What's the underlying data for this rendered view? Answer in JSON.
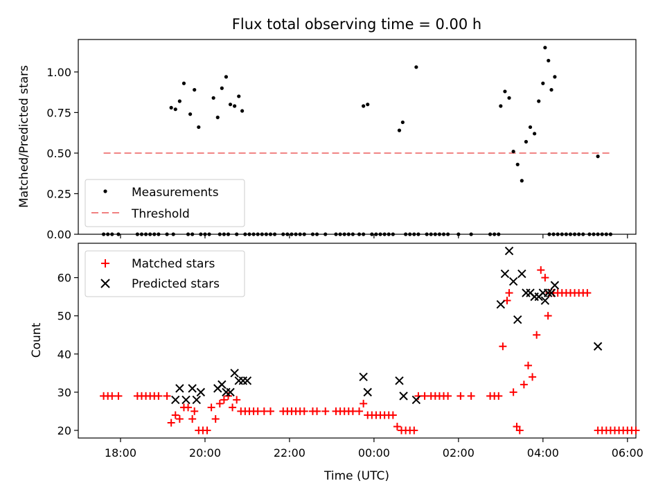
{
  "title": "Flux total observing time = 0.00 h",
  "colors": {
    "measurement": "#000000",
    "threshold": "#f08080",
    "matched": "#ff0000",
    "predicted": "#000000"
  },
  "chart_data": [
    {
      "type": "scatter",
      "title": "Flux total observing time = 0.00 h",
      "xlabel": "",
      "ylabel": "Matched/Predicted stars",
      "xlim_hours": [
        17.0,
        30.2
      ],
      "ylim": [
        0,
        1.2
      ],
      "yticks": [
        0.0,
        0.25,
        0.5,
        0.75,
        1.0
      ],
      "ytick_labels": [
        "0.00",
        "0.25",
        "0.50",
        "0.75",
        "1.00"
      ],
      "grid": false,
      "legend_position": "lower-left",
      "legend": [
        {
          "label": "Measurements",
          "marker": "dot"
        },
        {
          "label": "Threshold",
          "marker": "dashed-line"
        }
      ],
      "threshold": {
        "value": 0.5,
        "x_range_hours": [
          17.6,
          29.6
        ]
      },
      "series": [
        {
          "name": "Measurements",
          "points": [
            [
              19.2,
              0.78
            ],
            [
              19.3,
              0.77
            ],
            [
              19.4,
              0.82
            ],
            [
              19.5,
              0.93
            ],
            [
              19.65,
              0.74
            ],
            [
              19.75,
              0.89
            ],
            [
              19.85,
              0.66
            ],
            [
              20.2,
              0.84
            ],
            [
              20.3,
              0.72
            ],
            [
              20.4,
              0.9
            ],
            [
              20.5,
              0.97
            ],
            [
              20.6,
              0.8
            ],
            [
              20.7,
              0.79
            ],
            [
              20.8,
              0.85
            ],
            [
              20.88,
              0.76
            ],
            [
              23.75,
              0.79
            ],
            [
              23.85,
              0.8
            ],
            [
              24.6,
              0.64
            ],
            [
              24.68,
              0.69
            ],
            [
              25.0,
              1.03
            ],
            [
              27.0,
              0.79
            ],
            [
              27.1,
              0.88
            ],
            [
              27.2,
              0.84
            ],
            [
              27.3,
              0.51
            ],
            [
              27.4,
              0.43
            ],
            [
              27.5,
              0.33
            ],
            [
              27.6,
              0.57
            ],
            [
              27.7,
              0.66
            ],
            [
              27.8,
              0.62
            ],
            [
              27.9,
              0.82
            ],
            [
              28.0,
              0.93
            ],
            [
              28.05,
              1.15
            ],
            [
              28.13,
              1.07
            ],
            [
              28.2,
              0.89
            ],
            [
              28.28,
              0.97
            ],
            [
              29.3,
              0.48
            ],
            [
              17.6,
              0
            ],
            [
              17.7,
              0
            ],
            [
              17.8,
              0
            ],
            [
              17.95,
              0
            ],
            [
              18.4,
              0
            ],
            [
              18.5,
              0
            ],
            [
              18.6,
              0
            ],
            [
              18.7,
              0
            ],
            [
              18.8,
              0
            ],
            [
              18.9,
              0
            ],
            [
              19.1,
              0
            ],
            [
              19.25,
              0
            ],
            [
              19.6,
              0
            ],
            [
              19.7,
              0
            ],
            [
              19.9,
              0
            ],
            [
              20.0,
              0
            ],
            [
              20.1,
              0
            ],
            [
              20.35,
              0
            ],
            [
              20.45,
              0
            ],
            [
              20.55,
              0
            ],
            [
              20.75,
              0
            ],
            [
              20.95,
              0
            ],
            [
              21.05,
              0
            ],
            [
              21.15,
              0
            ],
            [
              21.25,
              0
            ],
            [
              21.35,
              0
            ],
            [
              21.45,
              0
            ],
            [
              21.55,
              0
            ],
            [
              21.65,
              0
            ],
            [
              21.85,
              0
            ],
            [
              21.95,
              0
            ],
            [
              22.05,
              0
            ],
            [
              22.15,
              0
            ],
            [
              22.25,
              0
            ],
            [
              22.35,
              0
            ],
            [
              22.55,
              0
            ],
            [
              22.65,
              0
            ],
            [
              22.85,
              0
            ],
            [
              23.1,
              0
            ],
            [
              23.2,
              0
            ],
            [
              23.3,
              0
            ],
            [
              23.4,
              0
            ],
            [
              23.5,
              0
            ],
            [
              23.65,
              0
            ],
            [
              23.75,
              0
            ],
            [
              23.95,
              0
            ],
            [
              24.05,
              0
            ],
            [
              24.15,
              0
            ],
            [
              24.25,
              0
            ],
            [
              24.35,
              0
            ],
            [
              24.45,
              0
            ],
            [
              24.75,
              0
            ],
            [
              24.85,
              0
            ],
            [
              24.95,
              0
            ],
            [
              25.05,
              0
            ],
            [
              25.25,
              0
            ],
            [
              25.35,
              0
            ],
            [
              25.45,
              0
            ],
            [
              25.55,
              0
            ],
            [
              25.65,
              0
            ],
            [
              25.75,
              0
            ],
            [
              26.0,
              0
            ],
            [
              26.3,
              0
            ],
            [
              26.75,
              0
            ],
            [
              26.85,
              0
            ],
            [
              26.95,
              0
            ],
            [
              28.15,
              0
            ],
            [
              28.25,
              0
            ],
            [
              28.35,
              0
            ],
            [
              28.45,
              0
            ],
            [
              28.55,
              0
            ],
            [
              28.65,
              0
            ],
            [
              28.75,
              0
            ],
            [
              28.85,
              0
            ],
            [
              28.95,
              0
            ],
            [
              29.1,
              0
            ],
            [
              29.2,
              0
            ],
            [
              29.3,
              0
            ],
            [
              29.4,
              0
            ],
            [
              29.5,
              0
            ],
            [
              29.6,
              0
            ]
          ]
        }
      ]
    },
    {
      "type": "scatter",
      "xlabel": "Time (UTC)",
      "ylabel": "Count",
      "xlim_hours": [
        17.0,
        30.2
      ],
      "ylim": [
        18,
        69
      ],
      "yticks": [
        20,
        30,
        40,
        50,
        60
      ],
      "ytick_labels": [
        "20",
        "30",
        "40",
        "50",
        "60"
      ],
      "xticks_hours": [
        18,
        20,
        22,
        24,
        26,
        28,
        30
      ],
      "xtick_labels": [
        "18:00",
        "20:00",
        "22:00",
        "00:00",
        "02:00",
        "04:00",
        "06:00"
      ],
      "grid": false,
      "legend_position": "upper-left",
      "legend": [
        {
          "label": "Matched stars",
          "marker": "plus"
        },
        {
          "label": "Predicted stars",
          "marker": "x"
        }
      ],
      "series": [
        {
          "name": "Matched stars",
          "points": [
            [
              17.6,
              29
            ],
            [
              17.7,
              29
            ],
            [
              17.8,
              29
            ],
            [
              17.95,
              29
            ],
            [
              18.4,
              29
            ],
            [
              18.5,
              29
            ],
            [
              18.6,
              29
            ],
            [
              18.7,
              29
            ],
            [
              18.8,
              29
            ],
            [
              18.9,
              29
            ],
            [
              19.1,
              29
            ],
            [
              19.2,
              22
            ],
            [
              19.3,
              24
            ],
            [
              19.4,
              23
            ],
            [
              19.5,
              26
            ],
            [
              19.6,
              26
            ],
            [
              19.7,
              23
            ],
            [
              19.75,
              25
            ],
            [
              19.85,
              20
            ],
            [
              19.95,
              20
            ],
            [
              20.05,
              20
            ],
            [
              20.15,
              26
            ],
            [
              20.25,
              23
            ],
            [
              20.35,
              27
            ],
            [
              20.45,
              28
            ],
            [
              20.55,
              29
            ],
            [
              20.65,
              26
            ],
            [
              20.75,
              28
            ],
            [
              20.85,
              25
            ],
            [
              20.95,
              25
            ],
            [
              21.05,
              25
            ],
            [
              21.15,
              25
            ],
            [
              21.25,
              25
            ],
            [
              21.4,
              25
            ],
            [
              21.55,
              25
            ],
            [
              21.85,
              25
            ],
            [
              21.95,
              25
            ],
            [
              22.05,
              25
            ],
            [
              22.15,
              25
            ],
            [
              22.25,
              25
            ],
            [
              22.35,
              25
            ],
            [
              22.55,
              25
            ],
            [
              22.65,
              25
            ],
            [
              22.85,
              25
            ],
            [
              23.1,
              25
            ],
            [
              23.2,
              25
            ],
            [
              23.3,
              25
            ],
            [
              23.4,
              25
            ],
            [
              23.5,
              25
            ],
            [
              23.65,
              25
            ],
            [
              23.75,
              27
            ],
            [
              23.85,
              24
            ],
            [
              23.95,
              24
            ],
            [
              24.05,
              24
            ],
            [
              24.15,
              24
            ],
            [
              24.25,
              24
            ],
            [
              24.35,
              24
            ],
            [
              24.45,
              24
            ],
            [
              24.55,
              21
            ],
            [
              24.65,
              20
            ],
            [
              24.75,
              20
            ],
            [
              24.85,
              20
            ],
            [
              24.95,
              20
            ],
            [
              25.05,
              29
            ],
            [
              25.2,
              29
            ],
            [
              25.35,
              29
            ],
            [
              25.45,
              29
            ],
            [
              25.55,
              29
            ],
            [
              25.65,
              29
            ],
            [
              25.75,
              29
            ],
            [
              26.05,
              29
            ],
            [
              26.3,
              29
            ],
            [
              26.75,
              29
            ],
            [
              26.85,
              29
            ],
            [
              26.95,
              29
            ],
            [
              27.05,
              42
            ],
            [
              27.15,
              54
            ],
            [
              27.2,
              56
            ],
            [
              27.3,
              30
            ],
            [
              27.38,
              21
            ],
            [
              27.45,
              20
            ],
            [
              27.55,
              32
            ],
            [
              27.65,
              37
            ],
            [
              27.75,
              34
            ],
            [
              27.85,
              45
            ],
            [
              27.95,
              62
            ],
            [
              28.05,
              60
            ],
            [
              28.12,
              50
            ],
            [
              28.15,
              56
            ],
            [
              28.25,
              56
            ],
            [
              28.35,
              56
            ],
            [
              28.45,
              56
            ],
            [
              28.55,
              56
            ],
            [
              28.65,
              56
            ],
            [
              28.75,
              56
            ],
            [
              28.85,
              56
            ],
            [
              28.95,
              56
            ],
            [
              29.05,
              56
            ],
            [
              29.3,
              20
            ],
            [
              29.4,
              20
            ],
            [
              29.5,
              20
            ],
            [
              29.6,
              20
            ],
            [
              29.7,
              20
            ],
            [
              29.8,
              20
            ],
            [
              29.9,
              20
            ],
            [
              30.0,
              20
            ],
            [
              30.1,
              20
            ],
            [
              30.2,
              20
            ]
          ]
        },
        {
          "name": "Predicted stars",
          "points": [
            [
              19.3,
              28
            ],
            [
              19.4,
              31
            ],
            [
              19.55,
              28
            ],
            [
              19.7,
              31
            ],
            [
              19.8,
              28
            ],
            [
              19.9,
              30
            ],
            [
              20.3,
              31
            ],
            [
              20.4,
              32
            ],
            [
              20.5,
              30
            ],
            [
              20.6,
              30
            ],
            [
              20.7,
              35
            ],
            [
              20.8,
              33
            ],
            [
              20.9,
              33
            ],
            [
              21.0,
              33
            ],
            [
              23.75,
              34
            ],
            [
              23.85,
              30
            ],
            [
              24.6,
              33
            ],
            [
              24.7,
              29
            ],
            [
              25.0,
              28
            ],
            [
              27.0,
              53
            ],
            [
              27.1,
              61
            ],
            [
              27.2,
              67
            ],
            [
              27.3,
              59
            ],
            [
              27.4,
              49
            ],
            [
              27.5,
              61
            ],
            [
              27.6,
              56
            ],
            [
              27.7,
              56
            ],
            [
              27.8,
              55
            ],
            [
              27.9,
              55
            ],
            [
              28.0,
              56
            ],
            [
              28.05,
              54
            ],
            [
              28.12,
              56
            ],
            [
              28.2,
              56
            ],
            [
              28.28,
              58
            ],
            [
              29.3,
              42
            ]
          ]
        }
      ]
    }
  ]
}
